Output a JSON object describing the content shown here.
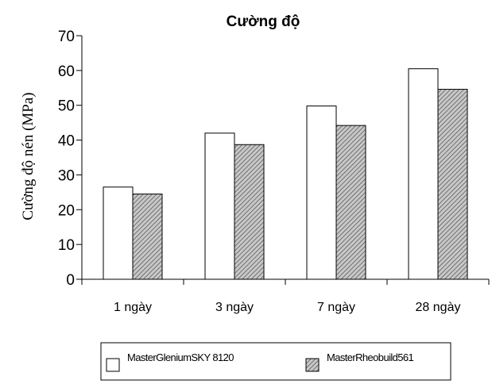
{
  "chart_data": {
    "type": "bar",
    "title": "Cường độ",
    "ylabel": "Cường độ nén (MPa)",
    "xlabel": "",
    "ylim": [
      0,
      70
    ],
    "yticks": [
      0,
      10,
      20,
      30,
      40,
      50,
      60,
      70
    ],
    "categories": [
      "1 ngày",
      "3 ngày",
      "7 ngày",
      "28 ngày"
    ],
    "series": [
      {
        "name": "MasterGleniumSKY 8120",
        "values": [
          26.5,
          42,
          49.8,
          60.5
        ],
        "fill": "#ffffff"
      },
      {
        "name": "MasterRheobuild561",
        "values": [
          24.5,
          38.7,
          44.2,
          54.6
        ],
        "fill": "hatched"
      }
    ],
    "grid": false,
    "legend": "bottom"
  }
}
